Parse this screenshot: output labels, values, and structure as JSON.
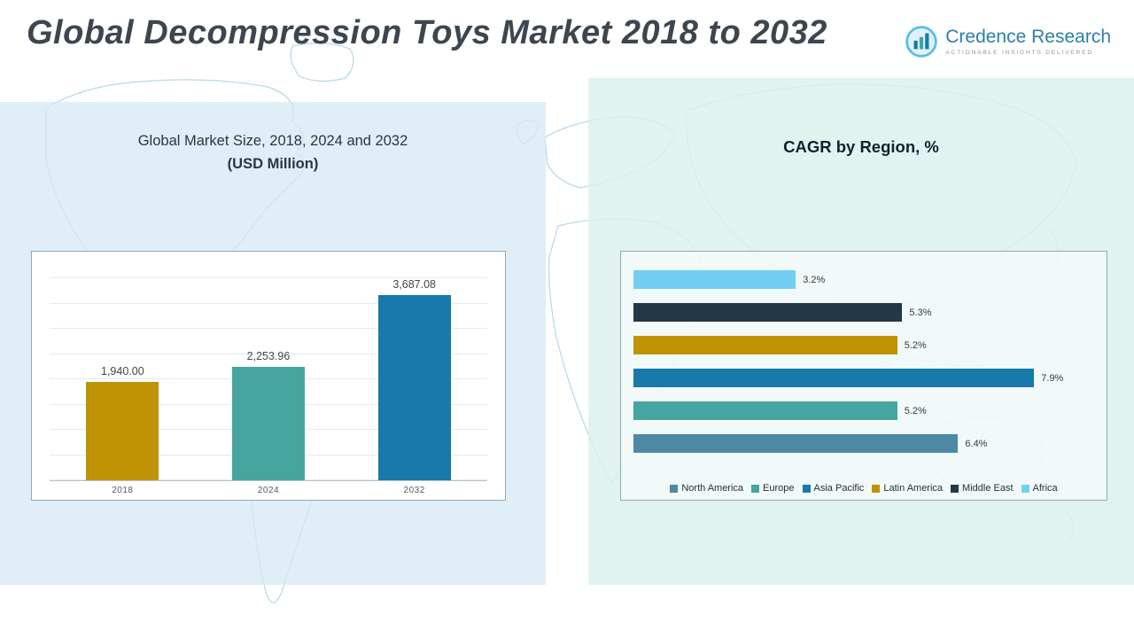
{
  "header": {
    "title": "Global Decompression Toys Market 2018 to 2032",
    "logo": {
      "name": "Credence Research",
      "tagline": "Actionable Insights Delivered"
    }
  },
  "left_panel": {
    "title_line1": "Global Market Size, 2018, 2024 and 2032",
    "title_line2": "(USD Million)"
  },
  "right_panel": {
    "title": "CAGR by Region, %"
  },
  "chart_data": [
    {
      "type": "bar",
      "title": "Global Market Size, 2018, 2024 and 2032 (USD Million)",
      "categories": [
        "2018",
        "2024",
        "2032"
      ],
      "values": [
        1940.0,
        2253.96,
        3687.08
      ],
      "value_labels": [
        "1,940.00",
        "2,253.96",
        "3,687.08"
      ],
      "colors": [
        "#c09206",
        "#46a5a0",
        "#1879ab"
      ],
      "xlabel": "",
      "ylabel": "",
      "ylim": [
        0,
        4000
      ],
      "grid": true,
      "legend_position": "none"
    },
    {
      "type": "bar",
      "orientation": "horizontal",
      "title": "CAGR by Region, %",
      "categories": [
        "Africa",
        "Middle East",
        "Latin America",
        "Asia Pacific",
        "Europe",
        "North America"
      ],
      "values": [
        3.2,
        5.3,
        5.2,
        7.9,
        5.2,
        6.4
      ],
      "value_labels": [
        "3.2%",
        "5.3%",
        "5.2%",
        "7.9%",
        "5.2%",
        "6.4%"
      ],
      "colors": [
        "#72cff2",
        "#233746",
        "#c09206",
        "#1879ab",
        "#46a5a0",
        "#4d89a5"
      ],
      "xlim": [
        0,
        8
      ],
      "grid": false,
      "legend_position": "bottom",
      "legend": [
        {
          "label": "North America",
          "color": "#4d89a5"
        },
        {
          "label": "Europe",
          "color": "#46a5a0"
        },
        {
          "label": "Asia Pacific",
          "color": "#1879ab"
        },
        {
          "label": "Latin America",
          "color": "#c09206"
        },
        {
          "label": "Middle East",
          "color": "#233746"
        },
        {
          "label": "Africa",
          "color": "#72cff2"
        }
      ]
    }
  ]
}
